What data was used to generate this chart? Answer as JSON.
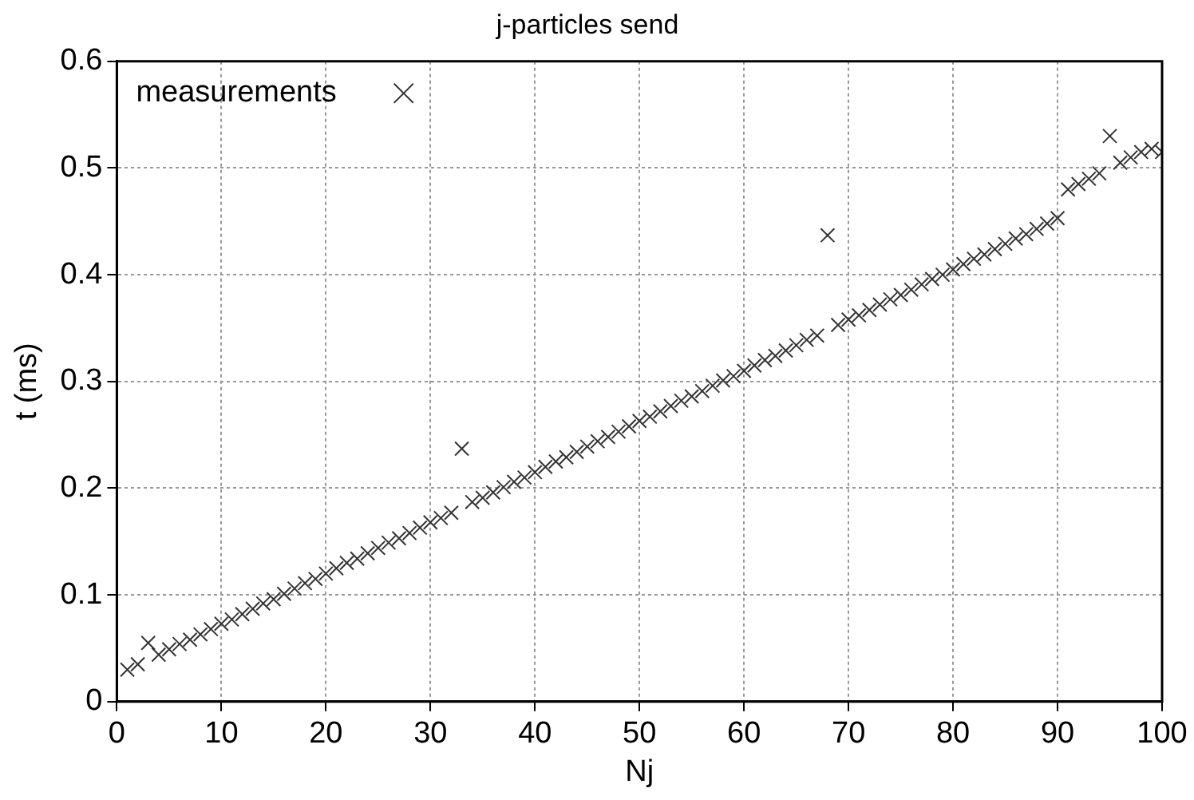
{
  "chart_data": {
    "type": "scatter",
    "title": "j-particles send",
    "xlabel": "Nj",
    "ylabel": "t (ms)",
    "xlim": [
      0,
      100
    ],
    "xticks": [
      0,
      10,
      20,
      30,
      40,
      50,
      60,
      70,
      80,
      90,
      100
    ],
    "ylim": [
      0,
      0.6
    ],
    "yticks": [
      0,
      0.1,
      0.2,
      0.3,
      0.4,
      0.5,
      0.6
    ],
    "grid": true,
    "legend": "top left",
    "marker": "cross",
    "series": [
      {
        "name": "measurements",
        "color": "#333333",
        "x": [
          1,
          2,
          3,
          4,
          5,
          6,
          7,
          8,
          9,
          10,
          11,
          12,
          13,
          14,
          15,
          16,
          17,
          18,
          19,
          20,
          21,
          22,
          23,
          24,
          25,
          26,
          27,
          28,
          29,
          30,
          31,
          32,
          33,
          34,
          35,
          36,
          37,
          38,
          39,
          40,
          41,
          42,
          43,
          44,
          45,
          46,
          47,
          48,
          49,
          50,
          51,
          52,
          53,
          54,
          55,
          56,
          57,
          58,
          59,
          60,
          61,
          62,
          63,
          64,
          65,
          66,
          67,
          68,
          69,
          70,
          71,
          72,
          73,
          74,
          75,
          76,
          77,
          78,
          79,
          80,
          81,
          82,
          83,
          84,
          85,
          86,
          87,
          88,
          89,
          90,
          91,
          92,
          93,
          94,
          95,
          96,
          97,
          98,
          99,
          100
        ],
        "values": [
          0.03,
          0.035,
          0.055,
          0.044,
          0.049,
          0.054,
          0.058,
          0.063,
          0.068,
          0.073,
          0.077,
          0.082,
          0.087,
          0.092,
          0.096,
          0.101,
          0.106,
          0.111,
          0.115,
          0.12,
          0.125,
          0.13,
          0.134,
          0.139,
          0.144,
          0.149,
          0.153,
          0.158,
          0.163,
          0.168,
          0.172,
          0.177,
          0.237,
          0.187,
          0.191,
          0.196,
          0.201,
          0.206,
          0.21,
          0.215,
          0.22,
          0.225,
          0.229,
          0.234,
          0.239,
          0.244,
          0.248,
          0.253,
          0.258,
          0.263,
          0.267,
          0.272,
          0.277,
          0.282,
          0.286,
          0.291,
          0.296,
          0.301,
          0.305,
          0.31,
          0.315,
          0.32,
          0.324,
          0.329,
          0.334,
          0.339,
          0.343,
          0.437,
          0.353,
          0.358,
          0.362,
          0.367,
          0.372,
          0.377,
          0.381,
          0.386,
          0.391,
          0.396,
          0.4,
          0.405,
          0.41,
          0.415,
          0.419,
          0.424,
          0.429,
          0.434,
          0.438,
          0.443,
          0.448,
          0.453,
          0.48,
          0.485,
          0.49,
          0.495,
          0.53,
          0.505,
          0.51,
          0.515,
          0.518,
          0.515
        ]
      }
    ]
  }
}
